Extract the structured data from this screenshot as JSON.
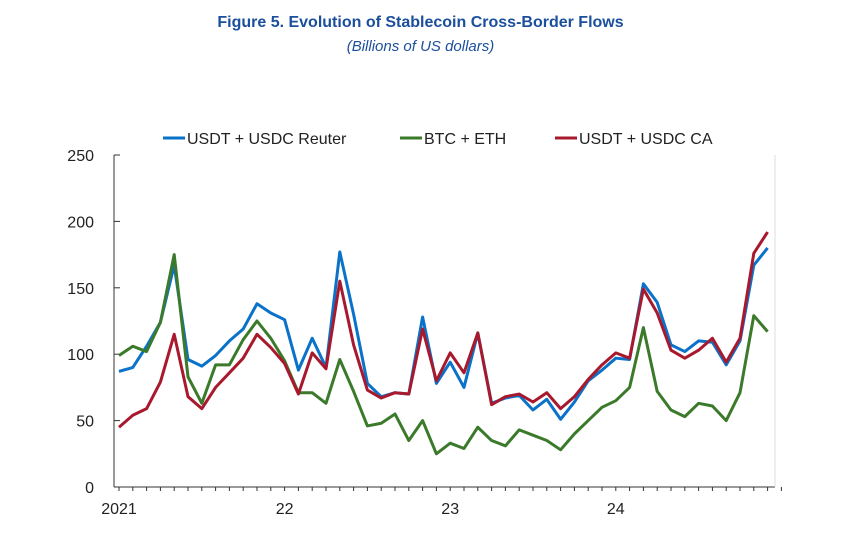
{
  "chart_data": {
    "type": "line",
    "title": "Figure 5. Evolution of Stablecoin Cross-Border Flows",
    "subtitle": "(Billions of US dollars)",
    "xlabel": "",
    "ylabel": "",
    "ylim": [
      0,
      250
    ],
    "yticks": [
      0,
      50,
      100,
      150,
      200,
      250
    ],
    "xtick_labels": [
      {
        "label": "2021",
        "index": 0
      },
      {
        "label": "22",
        "index": 12
      },
      {
        "label": "23",
        "index": 24
      },
      {
        "label": "24",
        "index": 36
      }
    ],
    "legend_position": "top",
    "series": [
      {
        "name": "USDT + USDC Reuter",
        "color": "#0a72c8",
        "values": [
          87,
          90,
          106,
          124,
          167,
          96,
          91,
          99,
          110,
          119,
          138,
          131,
          126,
          88,
          112,
          90,
          177,
          130,
          78,
          68,
          71,
          70,
          128,
          78,
          94,
          75,
          116,
          63,
          67,
          69,
          58,
          66,
          51,
          64,
          80,
          88,
          97,
          96,
          153,
          139,
          107,
          102,
          110,
          109,
          92,
          110,
          167,
          180
        ]
      },
      {
        "name": "BTC + ETH",
        "color": "#3b7a2a",
        "values": [
          99,
          106,
          102,
          124,
          175,
          83,
          63,
          92,
          92,
          111,
          125,
          112,
          95,
          71,
          71,
          63,
          96,
          72,
          46,
          48,
          55,
          35,
          50,
          25,
          33,
          29,
          45,
          35,
          31,
          43,
          39,
          35,
          28,
          40,
          50,
          60,
          65,
          75,
          120,
          72,
          58,
          53,
          63,
          61,
          50,
          71,
          129,
          117
        ]
      },
      {
        "name": "USDT + USDC CA",
        "color": "#a8192e",
        "values": [
          45,
          54,
          59,
          79,
          115,
          68,
          59,
          75,
          86,
          97,
          115,
          105,
          93,
          70,
          101,
          89,
          155,
          107,
          73,
          67,
          71,
          70,
          119,
          80,
          101,
          86,
          116,
          62,
          68,
          70,
          64,
          71,
          59,
          68,
          81,
          92,
          101,
          97,
          149,
          131,
          103,
          97,
          103,
          112,
          94,
          112,
          176,
          192
        ]
      }
    ]
  }
}
